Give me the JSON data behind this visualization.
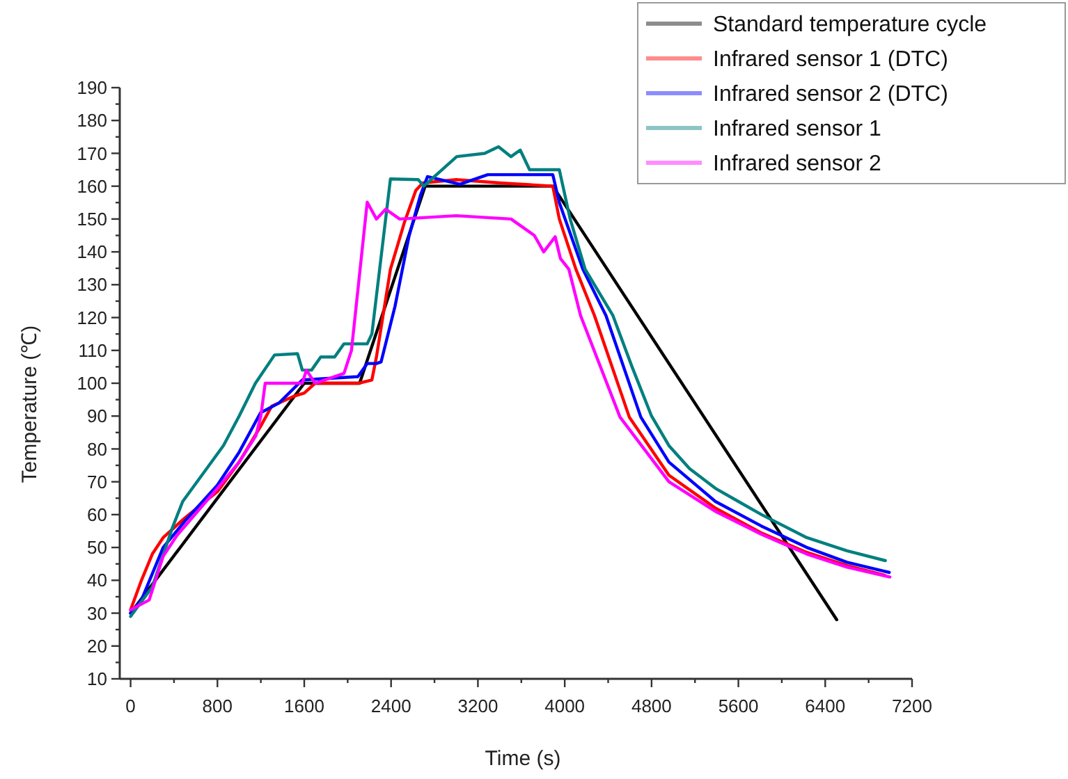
{
  "chart_data": {
    "type": "line",
    "xlabel": "Time (s)",
    "ylabel": "Temperature (℃)",
    "xlim": [
      -100,
      7200
    ],
    "ylim": [
      10,
      190
    ],
    "xticks": [
      0,
      {
        "value": 400,
        "label": null
      },
      800,
      {
        "value": 1200,
        "label": null
      },
      1600,
      {
        "value": 2000,
        "label": null
      },
      2400,
      {
        "value": 2800,
        "label": null
      },
      3200,
      {
        "value": 3600,
        "label": null
      },
      4000,
      {
        "value": 4400,
        "label": null
      },
      4800,
      {
        "value": 5200,
        "label": null
      },
      5600,
      {
        "value": 6000,
        "label": null
      },
      6400,
      {
        "value": 6800,
        "label": null
      },
      7200
    ],
    "yticks": [
      10,
      {
        "value": 15,
        "label": null
      },
      20,
      {
        "value": 25,
        "label": null
      },
      30,
      {
        "value": 35,
        "label": null
      },
      40,
      {
        "value": 45,
        "label": null
      },
      50,
      {
        "value": 55,
        "label": null
      },
      60,
      {
        "value": 65,
        "label": null
      },
      70,
      {
        "value": 75,
        "label": null
      },
      80,
      {
        "value": 85,
        "label": null
      },
      90,
      {
        "value": 95,
        "label": null
      },
      100,
      {
        "value": 105,
        "label": null
      },
      110,
      {
        "value": 115,
        "label": null
      },
      120,
      {
        "value": 125,
        "label": null
      },
      130,
      {
        "value": 135,
        "label": null
      },
      140,
      {
        "value": 145,
        "label": null
      },
      150,
      {
        "value": 155,
        "label": null
      },
      160,
      {
        "value": 165,
        "label": null
      },
      170,
      {
        "value": 175,
        "label": null
      },
      180,
      {
        "value": 185,
        "label": null
      },
      190
    ],
    "grid": false,
    "legend": "top right",
    "line_style": "solid",
    "series": [
      {
        "name": "Standard temperature cycle",
        "color": "#000000",
        "x": [
          0,
          1600,
          2110,
          2714,
          3890,
          6506
        ],
        "values": [
          30,
          100,
          100,
          160,
          160,
          28
        ]
      },
      {
        "name": "Infrared sensor 1 (DTC)",
        "color": "#ff0000",
        "x": [
          0,
          100,
          200,
          300,
          400,
          500,
          800,
          1000,
          1200,
          1300,
          1400,
          1500,
          1600,
          1700,
          2100,
          2223,
          2265,
          2394,
          2521,
          2628,
          2692,
          3000,
          3400,
          3890,
          3950,
          4103,
          4274,
          4595,
          4960,
          5388,
          5813,
          6230,
          6600,
          6950
        ],
        "values": [
          31,
          40,
          48,
          53,
          56,
          59,
          67,
          76,
          87,
          93,
          94.5,
          96,
          97,
          100,
          100,
          101,
          108,
          134.7,
          148.8,
          158.7,
          161,
          162,
          161,
          160,
          150,
          134.7,
          120.6,
          89.7,
          72,
          62,
          54.4,
          48.5,
          44.5,
          41.5
        ]
      },
      {
        "name": "Infrared sensor 2 (DTC)",
        "color": "#0000ff",
        "x": [
          0,
          100,
          200,
          300,
          500,
          800,
          1000,
          1197,
          1368,
          1582,
          2094,
          2180,
          2265,
          2308,
          2436,
          2564,
          2671,
          2735,
          3034,
          3291,
          3890,
          3950,
          4167,
          4380,
          4701,
          4960,
          5388,
          5813,
          6230,
          6600,
          6990
        ],
        "values": [
          30,
          34,
          42,
          50,
          58,
          69,
          79,
          91,
          94,
          101,
          102,
          106,
          106,
          106.5,
          123.4,
          144.6,
          157.3,
          162.9,
          160.6,
          163.5,
          163.5,
          155,
          134.7,
          120.6,
          89.7,
          76,
          64,
          56.5,
          50,
          45.5,
          42.4
        ]
      },
      {
        "name": "Infrared sensor 1",
        "color": "#007f7f",
        "x": [
          0,
          200,
          385,
          480,
          855,
          1000,
          1150,
          1326,
          1538,
          1582,
          1667,
          1752,
          1880,
          1966,
          2180,
          2223,
          2394,
          2650,
          2700,
          3005,
          3262,
          3390,
          3505,
          3590,
          3676,
          3950,
          4050,
          4188,
          4444,
          4620,
          4800,
          4960,
          5150,
          5388,
          5600,
          5813,
          6230,
          6600,
          6954
        ],
        "values": [
          29,
          38,
          56,
          64,
          81,
          90,
          100,
          108.6,
          109,
          104,
          104,
          108,
          108,
          112,
          112,
          115,
          162.2,
          162,
          160,
          169,
          170,
          172,
          169,
          171,
          165,
          165,
          150,
          134.7,
          120.6,
          105,
          90,
          81,
          74,
          68,
          64,
          60,
          53,
          49,
          46
        ]
      },
      {
        "name": "Infrared sensor 2",
        "color": "#ff00ff",
        "x": [
          0,
          171,
          300,
          428,
          800,
          1000,
          1154,
          1200,
          1240,
          1582,
          1620,
          1700,
          1966,
          2035,
          2180,
          2265,
          2350,
          2479,
          3000,
          3505,
          3720,
          3806,
          3912,
          3960,
          4038,
          4146,
          4509,
          4960,
          5388,
          5813,
          6230,
          6600,
          6996
        ],
        "values": [
          31,
          34,
          47.3,
          53.7,
          68,
          76,
          84,
          90,
          100,
          100,
          104,
          100,
          103,
          110,
          155.1,
          150,
          153,
          150,
          151,
          150,
          145,
          140,
          144.6,
          138,
          134.7,
          120.6,
          89.7,
          70,
          61,
          54,
          48,
          44,
          41
        ]
      }
    ]
  }
}
